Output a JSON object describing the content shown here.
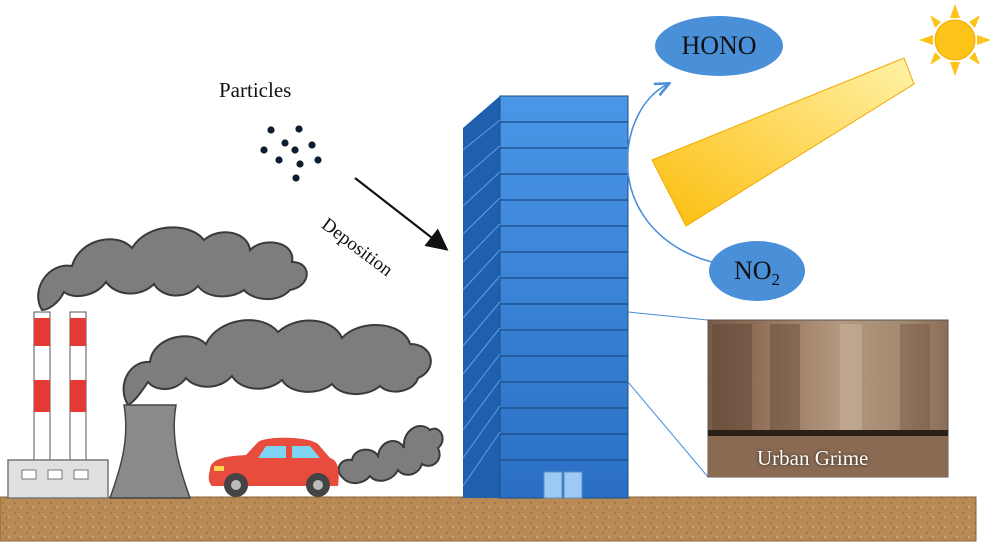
{
  "labels": {
    "particles": "Particles",
    "deposition": "Deposition",
    "urban_grime": "Urban Grime",
    "hono": "HONO",
    "no2_base": "NO",
    "no2_sub": "2"
  },
  "icons": [
    "sun-icon",
    "factory-chimney-icon",
    "cooling-tower-icon",
    "car-icon",
    "skyscraper-icon",
    "smoke-cloud-icon",
    "particle-dots-icon",
    "urban-grime-photo"
  ],
  "colors": {
    "smoke": "#7d7d7d",
    "building": "#3b82d6",
    "building_side": "#1e5fae",
    "sunbeam": "#fcc419",
    "molecule_bubble": "#4a90d9",
    "ground": "#b98a56",
    "chimney_red": "#e53935",
    "car": "#e74c3c"
  }
}
